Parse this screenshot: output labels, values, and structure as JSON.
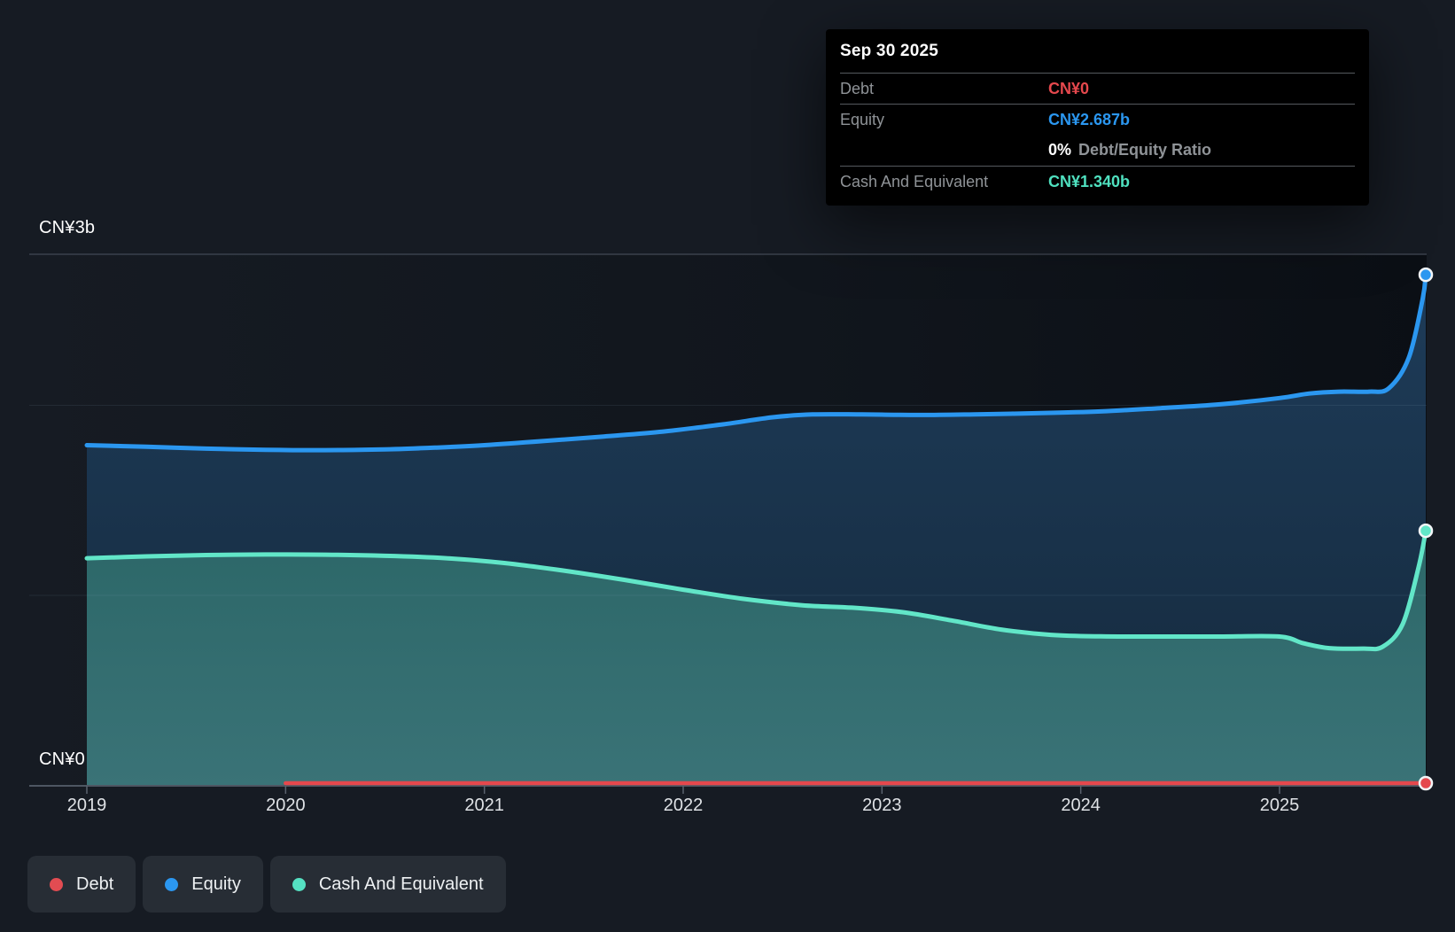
{
  "tooltip": {
    "date": "Sep 30 2025",
    "debt_label": "Debt",
    "debt_value": "CN¥0",
    "equity_label": "Equity",
    "equity_value": "CN¥2.687b",
    "ratio_value": "0%",
    "ratio_label": "Debt/Equity Ratio",
    "cash_label": "Cash And Equivalent",
    "cash_value": "CN¥1.340b"
  },
  "axis": {
    "y_max_label": "CN¥3b",
    "y_min_label": "CN¥0",
    "years": [
      "2019",
      "2020",
      "2021",
      "2022",
      "2023",
      "2024",
      "2025"
    ]
  },
  "legend": {
    "items": [
      {
        "label": "Debt",
        "color": "#e24c52"
      },
      {
        "label": "Equity",
        "color": "#2b97f0"
      },
      {
        "label": "Cash And Equivalent",
        "color": "#55e0c2"
      }
    ]
  },
  "colors": {
    "debt": "#e5484d",
    "equity": "#2b97f0",
    "cash": "#62e6c8",
    "grid_top": "#3a414c",
    "grid_faint": "rgba(160,185,210,0.10)",
    "axis_line": "#4e5662",
    "tick": "#5a626e"
  },
  "chart_data": {
    "type": "area",
    "title": "Debt to Equity History (CN¥ billions)",
    "ylabel": "CN¥",
    "ylim": [
      0,
      3
    ],
    "x_range": [
      2019,
      2025.75
    ],
    "grid_values": [
      1,
      2
    ],
    "highlight_date": "Sep 30 2025",
    "series": [
      {
        "name": "Debt",
        "color": "#e5484d",
        "points": [
          [
            2020.0,
            0
          ],
          [
            2025.75,
            0
          ]
        ]
      },
      {
        "name": "Equity",
        "color": "#2b97f0",
        "points": [
          [
            2019.0,
            1.79
          ],
          [
            2019.3,
            1.782
          ],
          [
            2019.6,
            1.772
          ],
          [
            2019.9,
            1.766
          ],
          [
            2020.2,
            1.764
          ],
          [
            2020.5,
            1.768
          ],
          [
            2020.75,
            1.777
          ],
          [
            2021.0,
            1.79
          ],
          [
            2021.3,
            1.812
          ],
          [
            2021.6,
            1.836
          ],
          [
            2021.9,
            1.862
          ],
          [
            2022.2,
            1.9
          ],
          [
            2022.45,
            1.937
          ],
          [
            2022.65,
            1.952
          ],
          [
            2022.9,
            1.952
          ],
          [
            2023.2,
            1.949
          ],
          [
            2023.5,
            1.953
          ],
          [
            2023.8,
            1.959
          ],
          [
            2024.1,
            1.968
          ],
          [
            2024.4,
            1.985
          ],
          [
            2024.7,
            2.005
          ],
          [
            2025.0,
            2.038
          ],
          [
            2025.15,
            2.062
          ],
          [
            2025.3,
            2.072
          ],
          [
            2025.45,
            2.072
          ],
          [
            2025.55,
            2.09
          ],
          [
            2025.65,
            2.25
          ],
          [
            2025.72,
            2.56
          ],
          [
            2025.75,
            2.687
          ]
        ]
      },
      {
        "name": "Cash And Equivalent",
        "color": "#62e6c8",
        "points": [
          [
            2019.0,
            1.195
          ],
          [
            2019.3,
            1.205
          ],
          [
            2019.6,
            1.212
          ],
          [
            2019.9,
            1.215
          ],
          [
            2020.2,
            1.214
          ],
          [
            2020.5,
            1.208
          ],
          [
            2020.8,
            1.196
          ],
          [
            2021.1,
            1.17
          ],
          [
            2021.4,
            1.13
          ],
          [
            2021.7,
            1.082
          ],
          [
            2022.0,
            1.03
          ],
          [
            2022.3,
            0.982
          ],
          [
            2022.6,
            0.948
          ],
          [
            2022.85,
            0.935
          ],
          [
            2023.1,
            0.912
          ],
          [
            2023.35,
            0.868
          ],
          [
            2023.6,
            0.82
          ],
          [
            2023.85,
            0.792
          ],
          [
            2024.1,
            0.784
          ],
          [
            2024.4,
            0.783
          ],
          [
            2024.7,
            0.783
          ],
          [
            2025.0,
            0.783
          ],
          [
            2025.12,
            0.748
          ],
          [
            2025.25,
            0.722
          ],
          [
            2025.42,
            0.72
          ],
          [
            2025.52,
            0.73
          ],
          [
            2025.62,
            0.85
          ],
          [
            2025.7,
            1.15
          ],
          [
            2025.75,
            1.34
          ]
        ]
      }
    ]
  }
}
